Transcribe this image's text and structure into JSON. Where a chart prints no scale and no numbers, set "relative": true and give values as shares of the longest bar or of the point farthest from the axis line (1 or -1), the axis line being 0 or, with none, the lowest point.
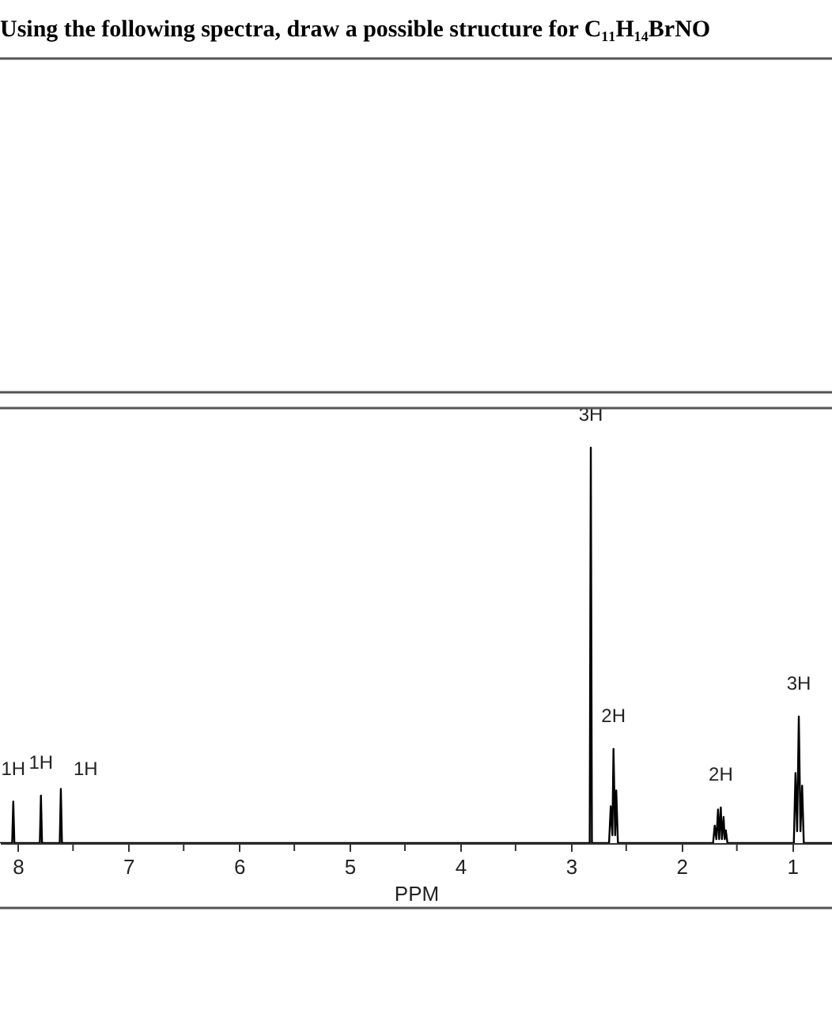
{
  "chart_data": {
    "type": "line",
    "title": "Using the following spectra, draw a possible structure for C₁₁H₁₄BrNO",
    "xlabel": "PPM",
    "relative": true,
    "xlim": [
      8.16,
      0.64
    ],
    "xticks": [
      8,
      {
        "value": 7.5,
        "label": null
      },
      7,
      {
        "value": 6.5,
        "label": null
      },
      6,
      {
        "value": 5.5,
        "label": null
      },
      5,
      {
        "value": 4.5,
        "label": null
      },
      4,
      {
        "value": 3.5,
        "label": null
      },
      3,
      {
        "value": 2.5,
        "label": null
      },
      2,
      {
        "value": 1.5,
        "label": null
      },
      1
    ],
    "grid": false,
    "line_style": "solid",
    "series": [
      {
        "color": "#000000",
        "x": [
          8.16,
          8.05,
          8.04,
          8.03,
          7.8,
          7.79,
          7.78,
          7.62,
          7.61,
          7.6,
          2.83,
          2.82,
          2.81,
          2.655,
          2.64,
          2.625,
          2.615,
          2.6,
          2.59,
          2.575,
          1.715,
          1.7,
          1.685,
          1.67,
          1.66,
          1.645,
          1.635,
          1.62,
          1.61,
          1.6,
          1.585,
          0.985,
          0.97,
          0.955,
          0.94,
          0.925,
          0.91,
          0.895,
          0.64
        ],
        "values": [
          0,
          0,
          0.105,
          0,
          0,
          0.12,
          0,
          0,
          0.137,
          0,
          0,
          1,
          0,
          0,
          0.093,
          0.02,
          0.238,
          0.02,
          0.133,
          0,
          0,
          0.044,
          0.01,
          0.085,
          0.01,
          0.09,
          0.01,
          0.066,
          0.01,
          0.032,
          0,
          0,
          0.177,
          0.03,
          0.32,
          0.03,
          0.145,
          0,
          0
        ]
      }
    ],
    "annotations": [
      {
        "text": "1H",
        "x": 8.04,
        "y": 0.105
      },
      {
        "text": "1H",
        "x": 7.79,
        "y": 0.12
      },
      {
        "text": "1H",
        "x": 7.61,
        "y": 0.137
      },
      {
        "text": "3H",
        "x": 2.82,
        "y": 1
      },
      {
        "text": "2H",
        "x": 2.615,
        "y": 0.238
      },
      {
        "text": "2H",
        "x": 1.645,
        "y": 0.09
      },
      {
        "text": "3H",
        "x": 0.94,
        "y": 0.32
      }
    ]
  }
}
